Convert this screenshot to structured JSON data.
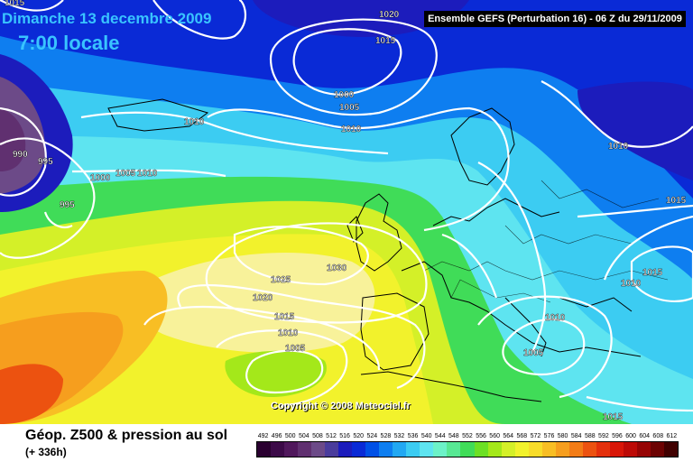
{
  "header": {
    "date": "Dimanche 13 decembre 2009",
    "time": "7:00 locale",
    "run": "Ensemble GEFS (Perturbation 16)  -  06 Z du 29/11/2009"
  },
  "copyright": "Copyright © 2008 Meteociel.fr",
  "footer": {
    "variable": "Géop. Z500 & pression au sol",
    "lead": "(+ 336h)"
  },
  "legend": {
    "values": [
      "492",
      "496",
      "500",
      "504",
      "508",
      "512",
      "516",
      "520",
      "524",
      "528",
      "532",
      "536",
      "540",
      "544",
      "548",
      "552",
      "556",
      "560",
      "564",
      "568",
      "572",
      "576",
      "580",
      "584",
      "588",
      "592",
      "596",
      "600",
      "604",
      "608",
      "612"
    ],
    "colors": [
      "#2a0030",
      "#3c0a48",
      "#50185c",
      "#603070",
      "#6c4a88",
      "#4a3c9c",
      "#1c1cbc",
      "#0a2ad6",
      "#0050e6",
      "#0e7ef0",
      "#22a8f2",
      "#3cccf2",
      "#5ee4f0",
      "#6cf2c8",
      "#58e894",
      "#40dc58",
      "#6ce024",
      "#a4e81a",
      "#d4f028",
      "#f2f22c",
      "#f8dc2a",
      "#f8be24",
      "#f69e1e",
      "#f27c16",
      "#ec5210",
      "#e4300c",
      "#d81608",
      "#bc0a06",
      "#960404",
      "#6c0202",
      "#400000"
    ]
  },
  "isobars": [
    "1015",
    "1020",
    "1015",
    "1000",
    "1005",
    "1010",
    "1010",
    "990",
    "995",
    "1000",
    "1005",
    "1010",
    "995",
    "1025",
    "1030",
    "1020",
    "1015",
    "1010",
    "1005",
    "1010",
    "1005",
    "1010",
    "1015",
    "1015",
    "1015",
    "1010"
  ]
}
